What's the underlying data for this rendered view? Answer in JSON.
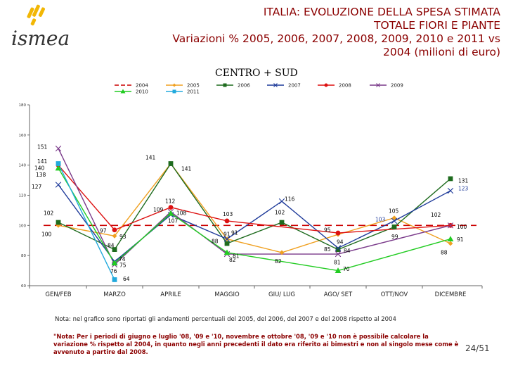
{
  "brand": {
    "logo_text": "ismea"
  },
  "header": {
    "title_line1": "ITALIA: EVOLUZIONE DELLA SPESA STIMATA",
    "title_line2": "TOTALE FIORI E PIANTE",
    "title_line3": "Variazioni % 2005, 2006, 2007, 2008, 2009, 2010 e 2011 vs",
    "title_line4": "2004 (milioni di euro)",
    "subtitle": "CENTRO + SUD"
  },
  "chart_data": {
    "type": "line",
    "title": "ITALIA: EVOLUZIONE DELLA SPESA STIMATA TOTALE FIORI E PIANTE",
    "categories": [
      "GEN/FEB",
      "MARZO",
      "APRILE",
      "MAGGIO",
      "GIU/ LUG",
      "AGO/ SET",
      "OTT/NOV",
      "DICEMBRE"
    ],
    "ylim": [
      60,
      180
    ],
    "yticks": [
      60,
      80,
      100,
      120,
      140,
      160,
      180
    ],
    "legend_position": "top",
    "series": [
      {
        "name": "2004",
        "color": "#cc0000",
        "style": "dashed",
        "values": [
          100,
          100,
          100,
          100,
          100,
          100,
          100,
          100
        ]
      },
      {
        "name": "2005",
        "color": "#f0a020",
        "marker": "diamond",
        "values": [
          100,
          93,
          141,
          91,
          82,
          94,
          105,
          88
        ]
      },
      {
        "name": "2006",
        "color": "#1e6b1e",
        "marker": "square",
        "values": [
          102,
          84,
          141,
          88,
          102,
          84,
          99,
          131
        ]
      },
      {
        "name": "2007",
        "color": "#1f3b9a",
        "marker": "x",
        "values": [
          127,
          76,
          107,
          91,
          116,
          85,
          103,
          123
        ]
      },
      {
        "name": "2008",
        "color": "#dd1111",
        "marker": "circle",
        "values": [
          140,
          97,
          112,
          103,
          null,
          95,
          null,
          100
        ]
      },
      {
        "name": "2009",
        "color": "#7a3a8a",
        "marker": "x",
        "values": [
          151,
          74,
          109,
          81,
          null,
          81,
          null,
          100
        ]
      },
      {
        "name": "2010",
        "color": "#22cc22",
        "marker": "triangle",
        "values": [
          138,
          75,
          108,
          82,
          null,
          70,
          null,
          91
        ]
      },
      {
        "name": "2011",
        "color": "#22aadd",
        "marker": "square",
        "values": [
          141,
          64,
          null,
          null,
          null,
          null,
          null,
          null
        ]
      }
    ],
    "data_labels": [
      {
        "text": "151",
        "cat": 0,
        "y": 151,
        "dx": -30,
        "dy": -2,
        "color": "#000"
      },
      {
        "text": "141",
        "cat": 0,
        "y": 142.5,
        "dx": -30,
        "dy": 0,
        "color": "#000"
      },
      {
        "text": "140",
        "cat": 0,
        "y": 139,
        "dx": -34,
        "dy": 2,
        "color": "#000"
      },
      {
        "text": "138",
        "cat": 0,
        "y": 133.5,
        "dx": -32,
        "dy": 0,
        "color": "#000"
      },
      {
        "text": "127",
        "cat": 0,
        "y": 127,
        "dx": -38,
        "dy": 3,
        "color": "#000"
      },
      {
        "text": "102",
        "cat": 0,
        "y": 108,
        "dx": -21,
        "dy": 0,
        "color": "#000"
      },
      {
        "text": "100",
        "cat": 0,
        "y": 94,
        "dx": -24,
        "dy": 0,
        "color": "#000"
      },
      {
        "text": "97",
        "cat": 1,
        "y": 96.5,
        "dx": -21,
        "dy": 0,
        "color": "#000"
      },
      {
        "text": "93",
        "cat": 1,
        "y": 92.5,
        "dx": 7,
        "dy": 0,
        "color": "#000"
      },
      {
        "text": "84",
        "cat": 1,
        "y": 86.5,
        "dx": -10,
        "dy": 0,
        "color": "#000"
      },
      {
        "text": "74",
        "cat": 1,
        "y": 77.5,
        "dx": 6,
        "dy": 0,
        "color": "#000"
      },
      {
        "text": "75",
        "cat": 1,
        "y": 73.5,
        "dx": 7,
        "dy": 0,
        "color": "#000"
      },
      {
        "text": "76",
        "cat": 1,
        "y": 69.5,
        "dx": -6,
        "dy": 0,
        "color": "#000"
      },
      {
        "text": "64",
        "cat": 1,
        "y": 64.5,
        "dx": 12,
        "dy": 0,
        "color": "#000"
      },
      {
        "text": "141",
        "cat": 2,
        "y": 145,
        "dx": -36,
        "dy": 0,
        "color": "#000"
      },
      {
        "text": "141",
        "cat": 2,
        "y": 137.5,
        "dx": 15,
        "dy": 0,
        "color": "#000"
      },
      {
        "text": "112",
        "cat": 2,
        "y": 116,
        "dx": -8,
        "dy": 0,
        "color": "#000"
      },
      {
        "text": "109",
        "cat": 2,
        "y": 110.5,
        "dx": -25,
        "dy": 0,
        "color": "#000"
      },
      {
        "text": "108",
        "cat": 2,
        "y": 108,
        "dx": 8,
        "dy": 0,
        "color": "#000"
      },
      {
        "text": "107",
        "cat": 2,
        "y": 103,
        "dx": -4,
        "dy": 0,
        "color": "#000"
      },
      {
        "text": "103",
        "cat": 3,
        "y": 107.5,
        "dx": -6,
        "dy": 0,
        "color": "#000"
      },
      {
        "text": "91",
        "cat": 3,
        "y": 94,
        "dx": -5,
        "dy": 0,
        "color": "#000"
      },
      {
        "text": "91",
        "cat": 3,
        "y": 95,
        "dx": 6,
        "dy": 0,
        "color": "#000"
      },
      {
        "text": "88",
        "cat": 3,
        "y": 89.5,
        "dx": -22,
        "dy": 0,
        "color": "#000"
      },
      {
        "text": "81",
        "cat": 3,
        "y": 79.5,
        "dx": 8,
        "dy": 0,
        "color": "#000"
      },
      {
        "text": "82",
        "cat": 3,
        "y": 77,
        "dx": 3,
        "dy": 0,
        "color": "#000"
      },
      {
        "text": "116",
        "cat": 4,
        "y": 117.5,
        "dx": 4,
        "dy": 0,
        "color": "#000"
      },
      {
        "text": "102",
        "cat": 4,
        "y": 108.5,
        "dx": -10,
        "dy": 0,
        "color": "#000"
      },
      {
        "text": "82",
        "cat": 4,
        "y": 76,
        "dx": -10,
        "dy": 0,
        "color": "#000"
      },
      {
        "text": "95",
        "cat": 5,
        "y": 97,
        "dx": -20,
        "dy": 0,
        "color": "#000"
      },
      {
        "text": "94",
        "cat": 5,
        "y": 89,
        "dx": -2,
        "dy": 0,
        "color": "#000"
      },
      {
        "text": "85",
        "cat": 5,
        "y": 84,
        "dx": -20,
        "dy": 0,
        "color": "#000"
      },
      {
        "text": "84",
        "cat": 5,
        "y": 83,
        "dx": 8,
        "dy": 0,
        "color": "#000"
      },
      {
        "text": "81",
        "cat": 5,
        "y": 75.5,
        "dx": -6,
        "dy": 0,
        "color": "#000"
      },
      {
        "text": "70",
        "cat": 5,
        "y": 71,
        "dx": 7,
        "dy": 0,
        "color": "#000"
      },
      {
        "text": "105",
        "cat": 6,
        "y": 109.5,
        "dx": -8,
        "dy": 0,
        "color": "#000"
      },
      {
        "text": "103",
        "cat": 6,
        "y": 104,
        "dx": -27,
        "dy": 0,
        "color": "#1f3b9a"
      },
      {
        "text": "99",
        "cat": 6,
        "y": 92.5,
        "dx": -4,
        "dy": 0,
        "color": "#000"
      },
      {
        "text": "102",
        "cat": 7,
        "y": 107,
        "dx": -28,
        "dy": 0,
        "color": "#000"
      },
      {
        "text": "131",
        "cat": 7,
        "y": 129.5,
        "dx": 11,
        "dy": 0,
        "color": "#000"
      },
      {
        "text": "123",
        "cat": 7,
        "y": 124.5,
        "dx": 11,
        "dy": 0,
        "color": "#1f3b9a"
      },
      {
        "text": "100",
        "cat": 7,
        "y": 99,
        "dx": 9,
        "dy": 0,
        "color": "#000"
      },
      {
        "text": "91",
        "cat": 7,
        "y": 90.5,
        "dx": 9,
        "dy": 0,
        "color": "#000"
      },
      {
        "text": "88",
        "cat": 7,
        "y": 82,
        "dx": -14,
        "dy": 0,
        "color": "#000"
      }
    ]
  },
  "notes": {
    "note1": "Nota: nel grafico sono riportati gli andamenti percentuali del 2005, del 2006, del 2007 e del 2008 rispetto al 2004",
    "note2": "\"Nota: Per i periodi di giugno e luglio '08, '09 e '10, novembre e ottobre '08, '09 e '10 non è possibile calcolare la variazione % rispetto al 2004, in quanto negli anni precedenti il dato era riferito ai bimestri e non al singolo mese come è avvenuto a partire dal 2008."
  },
  "footer": {
    "page": "24/51"
  }
}
